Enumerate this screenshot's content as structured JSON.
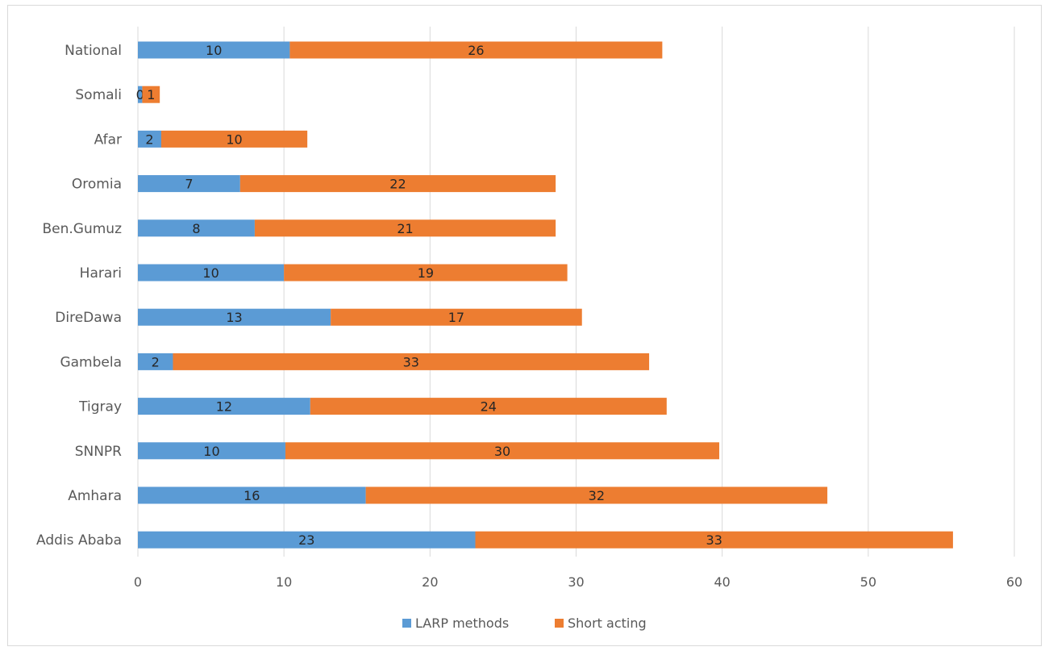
{
  "chart_data": {
    "type": "bar",
    "orientation": "horizontal",
    "stacked": true,
    "categories": [
      "National",
      "Somali",
      "Afar",
      "Oromia",
      "Ben.Gumuz",
      "Harari",
      "DireDawa",
      "Gambela",
      "Tigray",
      "SNNPR",
      "Amhara",
      "Addis Ababa"
    ],
    "series": [
      {
        "name": "LARP methods",
        "color": "#5b9bd5",
        "values": [
          10.4,
          0.3,
          1.6,
          7.0,
          8.0,
          10.0,
          13.2,
          2.4,
          11.8,
          10.1,
          15.6,
          23.1
        ],
        "labels": [
          "10",
          "0",
          "2",
          "7",
          "8",
          "10",
          "13",
          "2",
          "12",
          "10",
          "16",
          "23"
        ]
      },
      {
        "name": "Short acting",
        "color": "#ed7d31",
        "values": [
          25.5,
          1.2,
          10.0,
          21.6,
          20.6,
          19.4,
          17.2,
          32.6,
          24.4,
          29.7,
          31.6,
          32.7
        ],
        "labels": [
          "26",
          "1",
          "10",
          "22",
          "21",
          "19",
          "17",
          "33",
          "24",
          "30",
          "32",
          "33"
        ]
      }
    ],
    "x_ticks": [
      "0",
      "10",
      "20",
      "30",
      "40",
      "50",
      "60"
    ],
    "xlim": [
      0,
      60
    ],
    "grid": "vertical",
    "legend": "bottom-center"
  }
}
